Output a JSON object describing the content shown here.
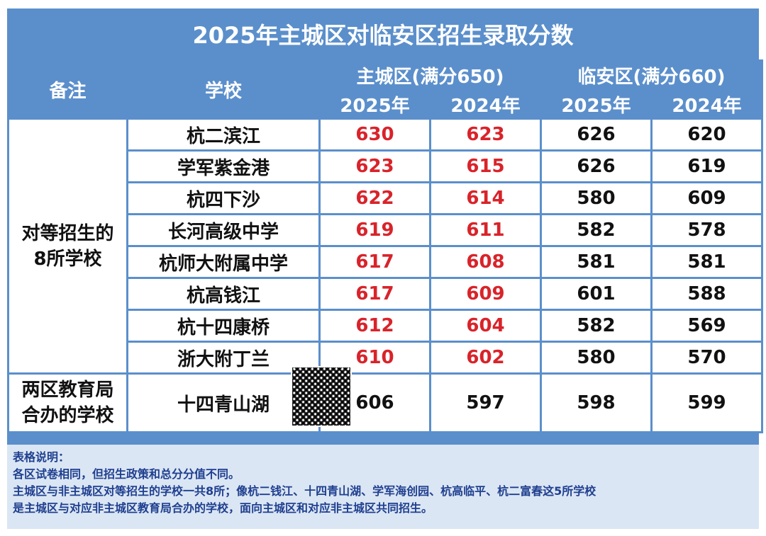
{
  "title": "2025年主城区对临安区招生录取分数",
  "header": {
    "note": "备注",
    "school": "学校",
    "main_district": "主城区(满分650)",
    "linan_district": "临安区(满分660)",
    "y2025": "2025年",
    "y2024": "2024年"
  },
  "groups": [
    {
      "label_lines": [
        "对等招生的",
        "8所学校"
      ],
      "rows": [
        {
          "school": "杭二滨江",
          "main2025": "630",
          "main2024": "623",
          "la2025": "626",
          "la2024": "620"
        },
        {
          "school": "学军紫金港",
          "main2025": "623",
          "main2024": "615",
          "la2025": "626",
          "la2024": "619"
        },
        {
          "school": "杭四下沙",
          "main2025": "622",
          "main2024": "614",
          "la2025": "580",
          "la2024": "609"
        },
        {
          "school": "长河高级中学",
          "main2025": "619",
          "main2024": "611",
          "la2025": "582",
          "la2024": "578"
        },
        {
          "school": "杭师大附属中学",
          "main2025": "617",
          "main2024": "608",
          "la2025": "581",
          "la2024": "581"
        },
        {
          "school": "杭高钱江",
          "main2025": "617",
          "main2024": "609",
          "la2025": "601",
          "la2024": "588"
        },
        {
          "school": "杭十四康桥",
          "main2025": "612",
          "main2024": "604",
          "la2025": "582",
          "la2024": "569"
        },
        {
          "school": "浙大附丁兰",
          "main2025": "610",
          "main2024": "602",
          "la2025": "580",
          "la2024": "570"
        }
      ]
    },
    {
      "label_lines": [
        "两区教育局",
        "合办的学校"
      ],
      "rows": [
        {
          "school": "十四青山湖",
          "main2025": "606",
          "main2024": "597",
          "la2025": "598",
          "la2024": "599"
        }
      ]
    }
  ],
  "notes": [
    "表格说明：",
    "各区试卷相同，但招生政策和总分分值不同。",
    "主城区与非主城区对等招生的学校一共8所；像杭二钱江、十四青山湖、学军海创园、杭高临平、杭二富春这5所学校",
    "是主城区与对应非主城区教育局合办的学校，面向主城区和对应非主城区共同招生。"
  ],
  "colors": {
    "header_blue": "#5b8fcb",
    "red": "#d9232a",
    "notes_bg": "#dbe6f4"
  }
}
